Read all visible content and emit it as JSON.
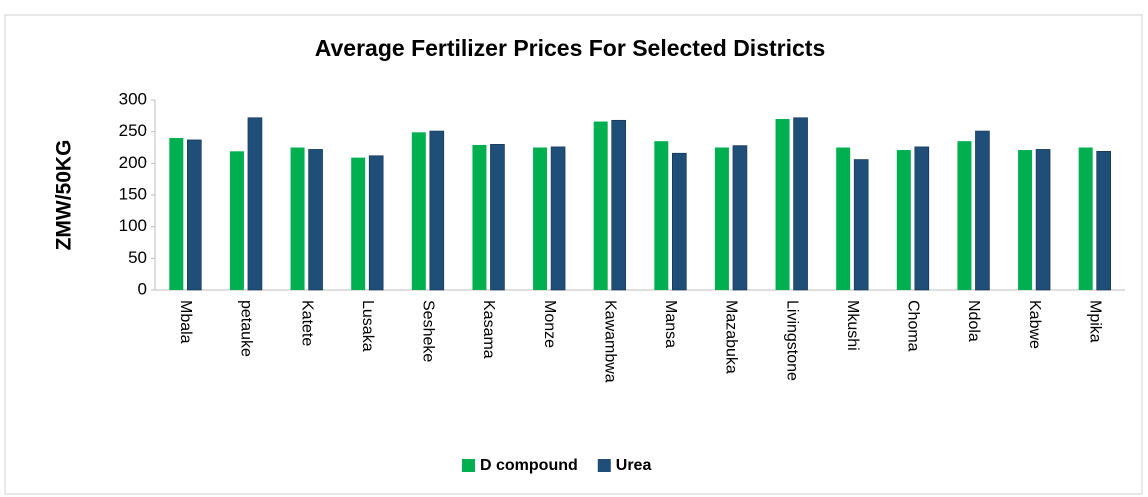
{
  "chart_data": {
    "type": "bar",
    "title": "Average Fertilizer Prices For Selected Districts",
    "y_label": "ZMW/50KG",
    "categories": [
      "Mbala",
      "petauke",
      "Katete",
      "Lusaka",
      "Sesheke",
      "Kasama",
      "Monze",
      "Kawambwa",
      "Mansa",
      "Mazabuka",
      "Livingstone",
      "Mkushi",
      "Choma",
      "Ndola",
      "Kabwe",
      "Mpika"
    ],
    "series": [
      {
        "name": "D compound",
        "color": "#00b050",
        "values": [
          240,
          219,
          225,
          209,
          249,
          229,
          225,
          266,
          235,
          225,
          270,
          225,
          221,
          235,
          221,
          225
        ]
      },
      {
        "name": "Urea",
        "color": "#1f4e79",
        "values": [
          237,
          272,
          222,
          212,
          251,
          230,
          226,
          268,
          216,
          228,
          272,
          206,
          226,
          251,
          222,
          219
        ]
      }
    ],
    "ylim": [
      0,
      300
    ],
    "yticks": [
      0,
      50,
      100,
      150,
      200,
      250,
      300
    ],
    "grid": false,
    "legend": "bottom"
  }
}
